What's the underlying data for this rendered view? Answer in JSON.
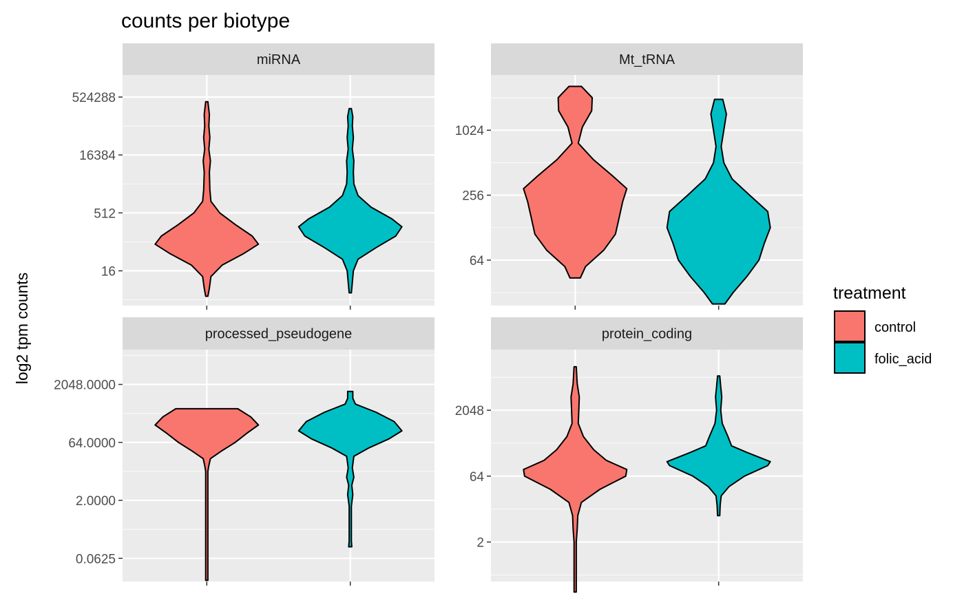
{
  "chart_data": {
    "type": "violin",
    "title": "counts per biotype",
    "ylabel": "log2 tpm counts",
    "xlabel": "",
    "y_scale": "log2",
    "grid": true,
    "legend": {
      "title": "treatment",
      "placement": "right",
      "entries": [
        {
          "name": "control",
          "color": "#F8766D"
        },
        {
          "name": "folic_acid",
          "color": "#00BFC4"
        }
      ]
    },
    "colors": {
      "control": "#F8766D",
      "folic_acid": "#00BFC4",
      "panel_bg": "#EBEBEB",
      "strip_bg": "#D9D9D9",
      "grid": "#FFFFFF"
    },
    "facets": [
      {
        "name": "miRNA",
        "ylim_log2": [
          1.0,
          20.9
        ],
        "yticks": [
          {
            "log2": 4,
            "label": "16"
          },
          {
            "log2": 9,
            "label": "512"
          },
          {
            "log2": 14,
            "label": "16384"
          },
          {
            "log2": 19,
            "label": "524288"
          }
        ],
        "violins": [
          {
            "group": "control",
            "min_log2": 1.8,
            "max_log2": 18.6,
            "profile": [
              [
                1.8,
                0.0
              ],
              [
                2.5,
                0.05
              ],
              [
                3.5,
                0.08
              ],
              [
                4.5,
                0.3
              ],
              [
                5.5,
                0.72
              ],
              [
                6.3,
                1.0
              ],
              [
                7.0,
                0.88
              ],
              [
                8.0,
                0.55
              ],
              [
                9.0,
                0.25
              ],
              [
                10.0,
                0.08
              ],
              [
                11.0,
                0.06
              ],
              [
                12.5,
                0.05
              ],
              [
                13.5,
                0.07
              ],
              [
                14.5,
                0.04
              ],
              [
                15.5,
                0.06
              ],
              [
                16.5,
                0.04
              ],
              [
                17.5,
                0.05
              ],
              [
                18.6,
                0.0
              ]
            ]
          },
          {
            "group": "folic_acid",
            "min_log2": 2.1,
            "max_log2": 18.0,
            "profile": [
              [
                2.1,
                0.0
              ],
              [
                3.0,
                0.04
              ],
              [
                4.0,
                0.06
              ],
              [
                5.0,
                0.15
              ],
              [
                6.0,
                0.5
              ],
              [
                7.0,
                0.88
              ],
              [
                7.8,
                1.0
              ],
              [
                8.5,
                0.8
              ],
              [
                9.5,
                0.4
              ],
              [
                10.5,
                0.15
              ],
              [
                11.5,
                0.07
              ],
              [
                12.5,
                0.06
              ],
              [
                13.5,
                0.07
              ],
              [
                14.5,
                0.04
              ],
              [
                15.5,
                0.06
              ],
              [
                16.5,
                0.04
              ],
              [
                17.3,
                0.05
              ],
              [
                18.0,
                0.0
              ]
            ]
          }
        ]
      },
      {
        "name": "Mt_tRNA",
        "ylim_log2": [
          4.6,
          11.7
        ],
        "yticks": [
          {
            "log2": 6,
            "label": "64"
          },
          {
            "log2": 8,
            "label": "256"
          },
          {
            "log2": 10,
            "label": "1024"
          }
        ],
        "violins": [
          {
            "group": "control",
            "min_log2": 5.45,
            "max_log2": 11.35,
            "profile": [
              [
                5.45,
                0.1
              ],
              [
                5.8,
                0.2
              ],
              [
                6.3,
                0.55
              ],
              [
                6.8,
                0.78
              ],
              [
                7.3,
                0.85
              ],
              [
                7.8,
                0.92
              ],
              [
                8.2,
                1.0
              ],
              [
                8.6,
                0.72
              ],
              [
                9.1,
                0.35
              ],
              [
                9.6,
                0.06
              ],
              [
                10.1,
                0.14
              ],
              [
                10.6,
                0.32
              ],
              [
                11.0,
                0.33
              ],
              [
                11.35,
                0.12
              ]
            ]
          },
          {
            "group": "folic_acid",
            "min_log2": 4.65,
            "max_log2": 10.95,
            "profile": [
              [
                4.65,
                0.12
              ],
              [
                5.0,
                0.28
              ],
              [
                5.5,
                0.55
              ],
              [
                6.0,
                0.78
              ],
              [
                6.5,
                0.88
              ],
              [
                7.0,
                1.0
              ],
              [
                7.5,
                0.95
              ],
              [
                8.0,
                0.6
              ],
              [
                8.5,
                0.26
              ],
              [
                9.0,
                0.1
              ],
              [
                9.5,
                0.05
              ],
              [
                10.0,
                0.1
              ],
              [
                10.5,
                0.15
              ],
              [
                10.95,
                0.08
              ]
            ]
          }
        ]
      },
      {
        "name": "processed_pseudogene",
        "ylim_log2": [
          -6.0,
          14.0
        ],
        "yticks": [
          {
            "log2": -4,
            "label": "0.0625"
          },
          {
            "log2": 1,
            "label": "2.0000"
          },
          {
            "log2": 6,
            "label": "64.0000"
          },
          {
            "log2": 11,
            "label": "2048.0000"
          }
        ],
        "violins": [
          {
            "group": "control",
            "min_log2": -5.9,
            "max_log2": 8.9,
            "profile": [
              [
                -5.9,
                0.0
              ],
              [
                -5.7,
                0.02
              ],
              [
                -4.0,
                0.01
              ],
              [
                0.0,
                0.01
              ],
              [
                3.5,
                0.02
              ],
              [
                4.0,
                0.04
              ],
              [
                4.6,
                0.07
              ],
              [
                5.3,
                0.3
              ],
              [
                6.0,
                0.55
              ],
              [
                6.8,
                0.78
              ],
              [
                7.5,
                1.0
              ],
              [
                8.2,
                0.85
              ],
              [
                8.9,
                0.6
              ]
            ]
          },
          {
            "group": "folic_acid",
            "min_log2": -3.0,
            "max_log2": 10.4,
            "profile": [
              [
                -3.0,
                0.03
              ],
              [
                -2.5,
                0.02
              ],
              [
                -1.0,
                0.02
              ],
              [
                0.5,
                0.02
              ],
              [
                1.5,
                0.05
              ],
              [
                2.3,
                0.03
              ],
              [
                3.0,
                0.07
              ],
              [
                3.8,
                0.04
              ],
              [
                4.8,
                0.07
              ],
              [
                5.5,
                0.35
              ],
              [
                6.3,
                0.75
              ],
              [
                7.0,
                1.0
              ],
              [
                7.8,
                0.85
              ],
              [
                8.6,
                0.5
              ],
              [
                9.3,
                0.1
              ],
              [
                9.8,
                0.05
              ],
              [
                10.4,
                0.05
              ]
            ]
          }
        ]
      },
      {
        "name": "protein_coding",
        "ylim_log2": [
          -2.0,
          15.6
        ],
        "yticks": [
          {
            "log2": 1,
            "label": "2"
          },
          {
            "log2": 6,
            "label": "64"
          },
          {
            "log2": 11,
            "label": "2048"
          }
        ],
        "violins": [
          {
            "group": "control",
            "min_log2": -2.8,
            "max_log2": 14.3,
            "profile": [
              [
                -2.8,
                0.0
              ],
              [
                -1.0,
                0.01
              ],
              [
                0.0,
                0.02
              ],
              [
                1.0,
                0.02
              ],
              [
                2.0,
                0.04
              ],
              [
                3.0,
                0.05
              ],
              [
                4.0,
                0.12
              ],
              [
                5.0,
                0.48
              ],
              [
                6.0,
                0.98
              ],
              [
                6.5,
                1.0
              ],
              [
                7.2,
                0.6
              ],
              [
                8.0,
                0.36
              ],
              [
                9.0,
                0.16
              ],
              [
                10.0,
                0.06
              ],
              [
                11.0,
                0.07
              ],
              [
                12.0,
                0.08
              ],
              [
                13.0,
                0.04
              ],
              [
                14.3,
                0.0
              ]
            ]
          },
          {
            "group": "folic_acid",
            "min_log2": 3.0,
            "max_log2": 13.6,
            "profile": [
              [
                3.0,
                0.0
              ],
              [
                3.8,
                0.03
              ],
              [
                4.5,
                0.05
              ],
              [
                5.2,
                0.2
              ],
              [
                6.0,
                0.5
              ],
              [
                6.8,
                0.95
              ],
              [
                7.1,
                1.0
              ],
              [
                7.8,
                0.55
              ],
              [
                8.3,
                0.25
              ],
              [
                9.0,
                0.18
              ],
              [
                10.0,
                0.07
              ],
              [
                11.0,
                0.04
              ],
              [
                12.0,
                0.06
              ],
              [
                12.8,
                0.04
              ],
              [
                13.6,
                0.0
              ]
            ]
          }
        ]
      }
    ]
  }
}
